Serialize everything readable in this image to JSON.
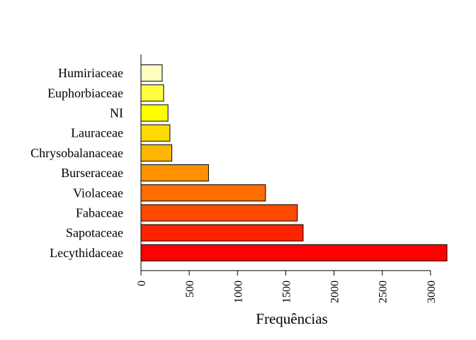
{
  "chart_data": {
    "type": "bar",
    "orientation": "horizontal",
    "title": "",
    "xlabel": "Frequências",
    "ylabel": "",
    "xlim": [
      0,
      3170
    ],
    "x_ticks": [
      0,
      500,
      1000,
      1500,
      2000,
      2500,
      3000
    ],
    "x_tick_labels": [
      "0",
      "500",
      "1000",
      "1500",
      "2000",
      "2500",
      "3000"
    ],
    "grid": false,
    "legend": "none",
    "categories": [
      "Lecythidaceae",
      "Sapotaceae",
      "Fabaceae",
      "Violaceae",
      "Burseraceae",
      "Chrysobalanaceae",
      "Lauraceae",
      "NI",
      "Euphorbiaceae",
      "Humiriaceae"
    ],
    "values": [
      3170,
      1680,
      1620,
      1290,
      700,
      320,
      300,
      280,
      235,
      220
    ],
    "colors": [
      "#FF0000",
      "#FF2400",
      "#FF4800",
      "#FF6D00",
      "#FF9100",
      "#FFB600",
      "#FFDA00",
      "#FFFF00",
      "#FFFF40",
      "#FFFFBF"
    ]
  }
}
